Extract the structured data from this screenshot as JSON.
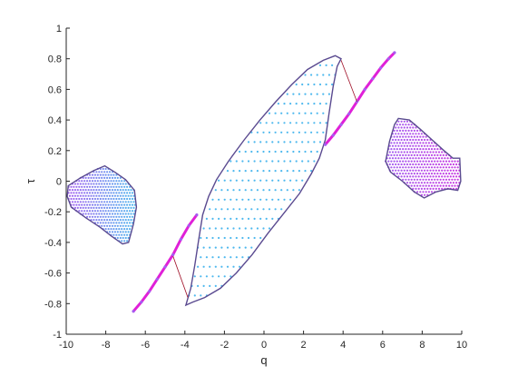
{
  "chart_data": {
    "type": "scatter",
    "title": "",
    "xlabel": "q",
    "ylabel": "τ",
    "xlim": [
      -10,
      10
    ],
    "ylim": [
      -1,
      1
    ],
    "xticks": [
      "-10",
      "-8",
      "-6",
      "-4",
      "-2",
      "0",
      "2",
      "4",
      "6",
      "8",
      "10"
    ],
    "yticks": [
      "-1",
      "-0.8",
      "-0.6",
      "-0.4",
      "-0.2",
      "0",
      "0.2",
      "0.4",
      "0.6",
      "0.8",
      "1"
    ],
    "grid": false,
    "legend": "none",
    "colors": {
      "blue": "#4db8ee",
      "purple": "#a45ef0",
      "magenta": "#e020d8",
      "outline": "#5a4a90",
      "connector": "#a01028"
    },
    "series": [
      {
        "region": "left-island",
        "color": "purple-blue",
        "outline": [
          [
            -9.9,
            -0.03
          ],
          [
            -9.3,
            0.02
          ],
          [
            -8.6,
            0.07
          ],
          [
            -8.05,
            0.1
          ],
          [
            -7.55,
            0.06
          ],
          [
            -7.0,
            0.01
          ],
          [
            -6.55,
            -0.06
          ],
          [
            -6.45,
            -0.17
          ],
          [
            -6.6,
            -0.28
          ],
          [
            -6.85,
            -0.4
          ],
          [
            -7.15,
            -0.41
          ],
          [
            -7.7,
            -0.36
          ],
          [
            -8.3,
            -0.3
          ],
          [
            -9.0,
            -0.24
          ],
          [
            -9.75,
            -0.17
          ],
          [
            -9.95,
            -0.1
          ]
        ]
      },
      {
        "region": "central-band",
        "color": "blue",
        "outline": [
          [
            -3.95,
            -0.81
          ],
          [
            -3.6,
            -0.79
          ],
          [
            -3.0,
            -0.76
          ],
          [
            -2.2,
            -0.7
          ],
          [
            -1.4,
            -0.6
          ],
          [
            -0.6,
            -0.48
          ],
          [
            0.2,
            -0.34
          ],
          [
            1.0,
            -0.21
          ],
          [
            1.8,
            -0.08
          ],
          [
            2.4,
            0.05
          ],
          [
            2.8,
            0.15
          ],
          [
            3.1,
            0.27
          ],
          [
            3.3,
            0.45
          ],
          [
            3.5,
            0.62
          ],
          [
            3.7,
            0.75
          ],
          [
            3.9,
            0.8
          ],
          [
            3.6,
            0.82
          ],
          [
            3.0,
            0.79
          ],
          [
            2.2,
            0.73
          ],
          [
            1.4,
            0.63
          ],
          [
            0.6,
            0.52
          ],
          [
            -0.2,
            0.4
          ],
          [
            -1.0,
            0.27
          ],
          [
            -1.8,
            0.13
          ],
          [
            -2.4,
            0.01
          ],
          [
            -2.8,
            -0.1
          ],
          [
            -3.1,
            -0.22
          ],
          [
            -3.3,
            -0.38
          ],
          [
            -3.5,
            -0.55
          ],
          [
            -3.7,
            -0.7
          ]
        ]
      },
      {
        "region": "right-island",
        "color": "purple",
        "outline": [
          [
            6.8,
            0.41
          ],
          [
            7.35,
            0.4
          ],
          [
            7.9,
            0.34
          ],
          [
            8.5,
            0.27
          ],
          [
            9.1,
            0.2
          ],
          [
            9.55,
            0.15
          ],
          [
            9.9,
            0.15
          ],
          [
            9.95,
            0.0
          ],
          [
            9.8,
            -0.06
          ],
          [
            9.3,
            -0.05
          ],
          [
            8.7,
            -0.07
          ],
          [
            8.1,
            -0.11
          ],
          [
            7.6,
            -0.07
          ],
          [
            7.0,
            0.0
          ],
          [
            6.4,
            0.06
          ],
          [
            6.15,
            0.13
          ],
          [
            6.35,
            0.26
          ],
          [
            6.6,
            0.37
          ]
        ]
      },
      {
        "region": "upper-arc",
        "color": "magenta",
        "points": [
          [
            3.1,
            0.24
          ],
          [
            3.5,
            0.3
          ],
          [
            3.9,
            0.37
          ],
          [
            4.3,
            0.44
          ],
          [
            4.7,
            0.52
          ],
          [
            5.1,
            0.6
          ],
          [
            5.5,
            0.67
          ],
          [
            5.9,
            0.74
          ],
          [
            6.3,
            0.8
          ],
          [
            6.6,
            0.84
          ]
        ]
      },
      {
        "region": "lower-arc",
        "color": "magenta",
        "points": [
          [
            -6.6,
            -0.85
          ],
          [
            -6.2,
            -0.79
          ],
          [
            -5.8,
            -0.72
          ],
          [
            -5.4,
            -0.64
          ],
          [
            -5.0,
            -0.56
          ],
          [
            -4.6,
            -0.48
          ],
          [
            -4.2,
            -0.38
          ],
          [
            -3.8,
            -0.29
          ],
          [
            -3.4,
            -0.22
          ]
        ]
      }
    ],
    "connectors": [
      [
        [
          3.9,
          0.79
        ],
        [
          4.7,
          0.52
        ]
      ],
      [
        [
          -3.85,
          -0.76
        ],
        [
          -4.6,
          -0.49
        ]
      ]
    ]
  }
}
